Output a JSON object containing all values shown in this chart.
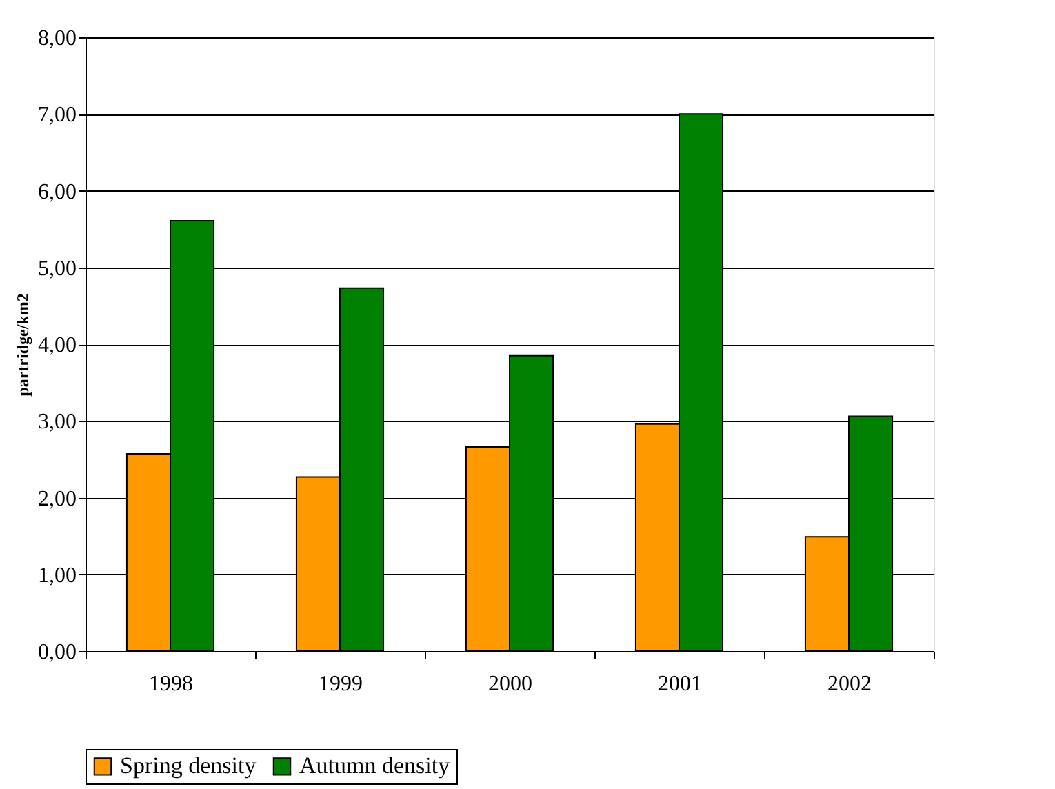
{
  "chart_data": {
    "type": "bar",
    "ylabel": "partridge/km2",
    "categories": [
      "1998",
      "1999",
      "2000",
      "2001",
      "2002"
    ],
    "series": [
      {
        "name": "Spring density",
        "color": "#ff9900",
        "values": [
          2.57,
          2.27,
          2.66,
          2.96,
          1.49
        ]
      },
      {
        "name": "Autumn density",
        "color": "#008000",
        "values": [
          5.61,
          4.73,
          3.85,
          7.0,
          3.06
        ]
      }
    ],
    "ylim": [
      0,
      8
    ],
    "yticks": [
      {
        "value": 0,
        "label": "0,00"
      },
      {
        "value": 1,
        "label": "1,00"
      },
      {
        "value": 2,
        "label": "2,00"
      },
      {
        "value": 3,
        "label": "3,00"
      },
      {
        "value": 4,
        "label": "4,00"
      },
      {
        "value": 5,
        "label": "5,00"
      },
      {
        "value": 6,
        "label": "6,00"
      },
      {
        "value": 7,
        "label": "7,00"
      },
      {
        "value": 8,
        "label": "8,00"
      }
    ],
    "grid": "y",
    "legend": "bottom"
  }
}
